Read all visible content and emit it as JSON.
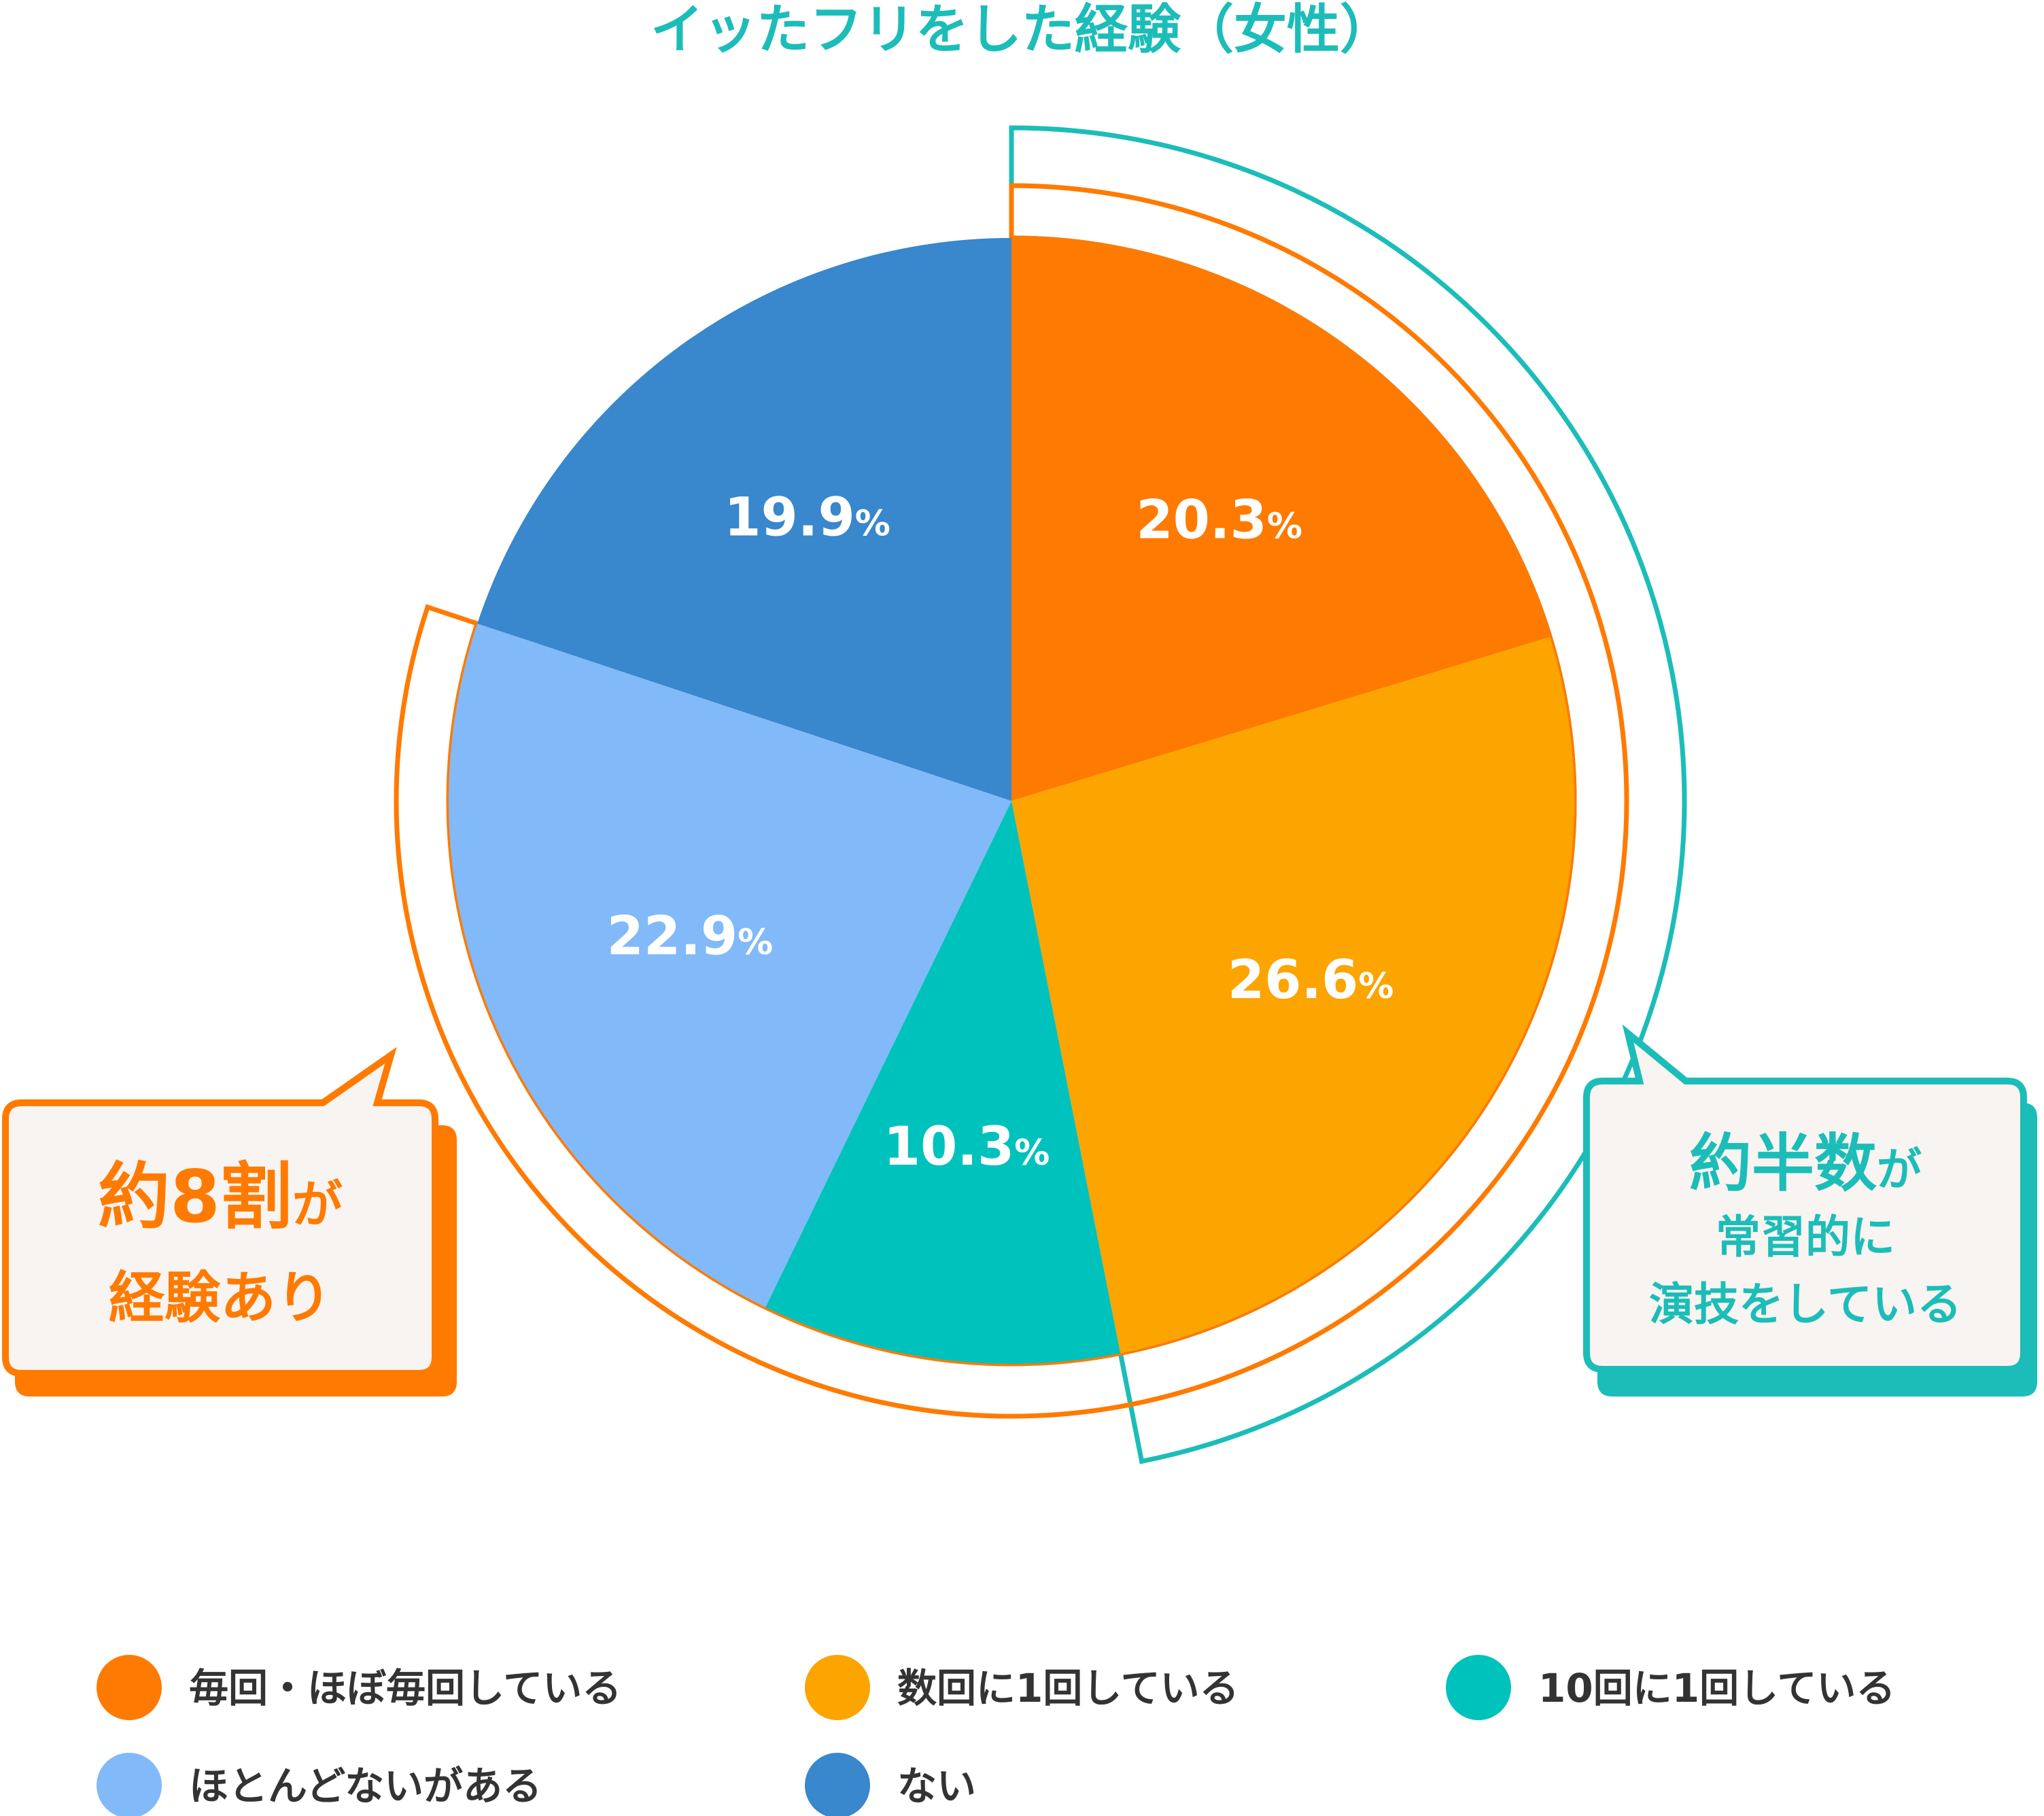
{
  "chart_data": {
    "type": "pie",
    "title": "イッたフリをした経験（女性）",
    "unit": "%",
    "start_angle_deg": 0,
    "direction": "clockwise",
    "slices": [
      {
        "label": "毎回・ほぼ毎回している",
        "value": 20.3,
        "value_text": "20.3",
        "color": "#FF7A00"
      },
      {
        "label": "数回に1回している",
        "value": 26.6,
        "value_text": "26.6",
        "color": "#FCA400"
      },
      {
        "label": "10回に1回している",
        "value": 10.3,
        "value_text": "10.3",
        "color": "#00C2BC"
      },
      {
        "label": "ほとんどないがある",
        "value": 22.9,
        "value_text": "22.9",
        "color": "#82B9F8"
      },
      {
        "label": "ない",
        "value": 19.9,
        "value_text": "19.9",
        "color": "#3987CC"
      }
    ],
    "legend_placement": "bottom"
  },
  "colors": {
    "title": "#1CBDB8",
    "orange_accent": "#FF7A00",
    "teal_accent": "#1CBDB8",
    "callout_fill": "#F8F4F1"
  },
  "callouts": {
    "left": {
      "line1_big": "約8割",
      "line1_small": "が",
      "line2": "経験あり"
    },
    "right": {
      "line1_big": "約半数",
      "line1_small": "が",
      "line2": "常習的に",
      "line3": "演技をしている"
    }
  }
}
